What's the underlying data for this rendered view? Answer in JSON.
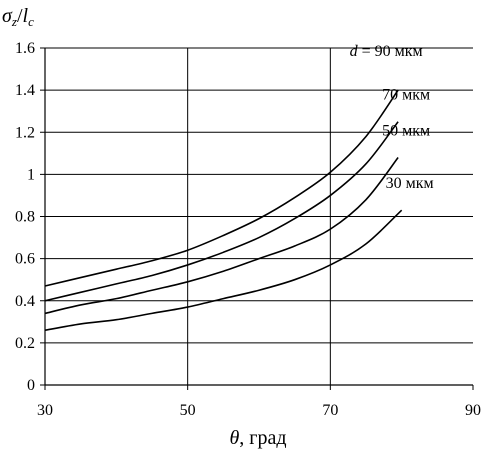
{
  "chart_data": {
    "type": "line",
    "ylabel_parts": {
      "sigma": "σ",
      "sub1": "z",
      "slash": "/",
      "l": "l",
      "sub2": "c"
    },
    "xlabel_parts": {
      "theta": "θ",
      "unit": ", град"
    },
    "xlim": [
      30,
      90
    ],
    "ylim": [
      0,
      1.6
    ],
    "xticks": [
      30,
      50,
      70,
      90
    ],
    "xtick_labels": [
      "30",
      "50",
      "70",
      "90"
    ],
    "yticks": [
      0,
      0.2,
      0.4,
      0.6,
      0.8,
      1,
      1.2,
      1.4,
      1.6
    ],
    "ytick_labels": [
      "0",
      "0.2",
      "0.4",
      "0.6",
      "0.8",
      "1",
      "1.2",
      "1.4",
      "1.6"
    ],
    "grid": {
      "horizontal": true,
      "vertical_at": [
        50,
        70
      ]
    },
    "line_color": "#000000",
    "grid_color": "#000000",
    "series": [
      {
        "name": "90 мкм",
        "label_prefix": "d",
        "label_equals": " = ",
        "x": [
          30,
          35,
          40,
          45,
          50,
          55,
          60,
          65,
          70,
          75,
          79.5
        ],
        "y": [
          0.47,
          0.51,
          0.55,
          0.59,
          0.64,
          0.71,
          0.79,
          0.89,
          1.01,
          1.18,
          1.4
        ]
      },
      {
        "name": "70 мкм",
        "x": [
          30,
          35,
          40,
          45,
          50,
          55,
          60,
          65,
          70,
          75,
          79.5
        ],
        "y": [
          0.4,
          0.44,
          0.48,
          0.52,
          0.57,
          0.63,
          0.7,
          0.79,
          0.9,
          1.05,
          1.25
        ]
      },
      {
        "name": "50 мкм",
        "x": [
          30,
          35,
          40,
          45,
          50,
          55,
          60,
          65,
          70,
          75,
          79.5
        ],
        "y": [
          0.34,
          0.38,
          0.41,
          0.45,
          0.49,
          0.54,
          0.6,
          0.66,
          0.74,
          0.88,
          1.08
        ]
      },
      {
        "name": "30 мкм",
        "x": [
          30,
          35,
          40,
          45,
          50,
          55,
          60,
          65,
          70,
          75,
          80
        ],
        "y": [
          0.26,
          0.29,
          0.31,
          0.34,
          0.37,
          0.41,
          0.45,
          0.5,
          0.57,
          0.67,
          0.83
        ]
      }
    ]
  }
}
